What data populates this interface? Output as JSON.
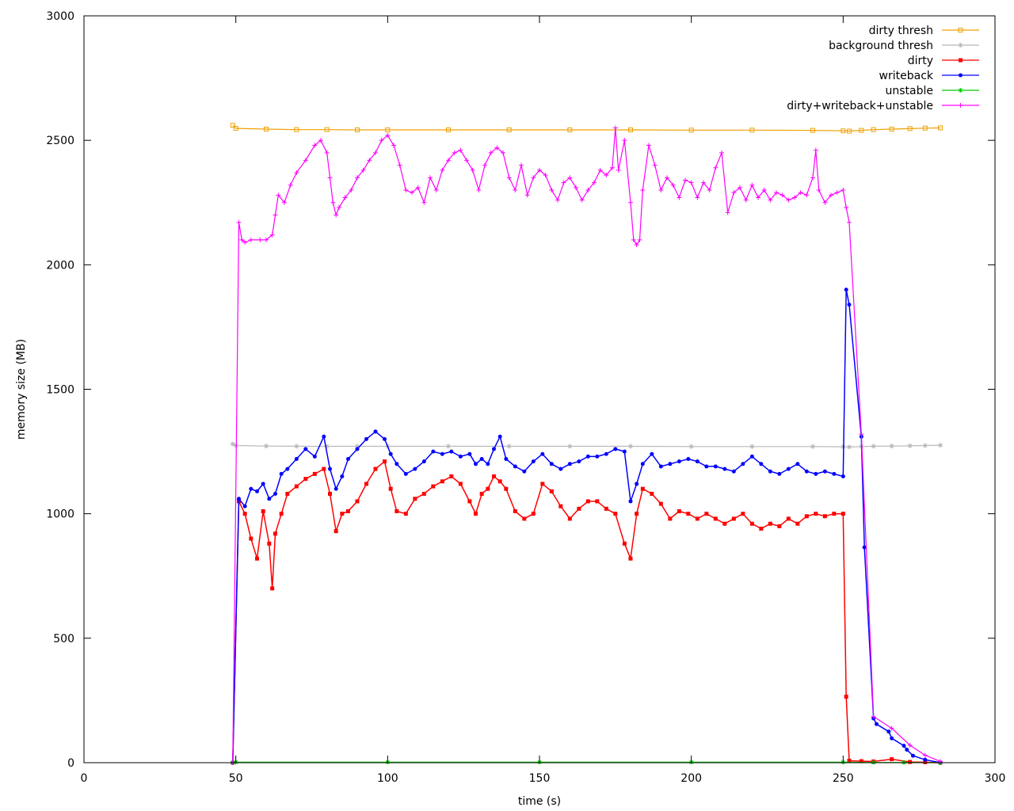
{
  "chart_data": {
    "type": "line",
    "xlabel": "time (s)",
    "ylabel": "memory size (MB)",
    "xlim": [
      0,
      300
    ],
    "ylim": [
      0,
      3000
    ],
    "xticks": [
      0,
      50,
      100,
      150,
      200,
      250,
      300
    ],
    "yticks": [
      0,
      500,
      1000,
      1500,
      2000,
      2500,
      3000
    ],
    "grid": false,
    "legend_position": "top-right",
    "series": [
      {
        "name": "dirty thresh",
        "color": "#f0a000",
        "marker": "square-open",
        "x": [
          49,
          50,
          60,
          70,
          80,
          90,
          100,
          120,
          140,
          160,
          180,
          200,
          220,
          240,
          250,
          252,
          256,
          260,
          266,
          272,
          277,
          282
        ],
        "y": [
          2560,
          2548,
          2545,
          2543,
          2543,
          2542,
          2542,
          2542,
          2542,
          2542,
          2542,
          2541,
          2541,
          2540,
          2538,
          2537,
          2540,
          2543,
          2545,
          2547,
          2549,
          2550
        ]
      },
      {
        "name": "background thresh",
        "color": "#b8b8b8",
        "marker": "star",
        "x": [
          49,
          50,
          60,
          70,
          80,
          90,
          100,
          120,
          140,
          160,
          180,
          200,
          220,
          240,
          250,
          252,
          256,
          260,
          266,
          272,
          277,
          282
        ],
        "y": [
          1280,
          1274,
          1272,
          1271,
          1271,
          1271,
          1271,
          1271,
          1271,
          1271,
          1271,
          1270,
          1270,
          1270,
          1269,
          1268,
          1270,
          1271,
          1272,
          1273,
          1274,
          1275
        ]
      },
      {
        "name": "dirty",
        "color": "#ff0000",
        "marker": "square",
        "x": [
          49,
          51,
          53,
          55,
          57,
          59,
          61,
          62,
          63,
          65,
          67,
          70,
          73,
          76,
          79,
          81,
          83,
          85,
          87,
          90,
          93,
          96,
          99,
          101,
          103,
          106,
          109,
          112,
          115,
          118,
          121,
          124,
          127,
          129,
          131,
          133,
          135,
          137,
          139,
          142,
          145,
          148,
          151,
          154,
          157,
          160,
          163,
          166,
          169,
          172,
          175,
          178,
          180,
          182,
          184,
          187,
          190,
          193,
          196,
          199,
          202,
          205,
          208,
          211,
          214,
          217,
          220,
          223,
          226,
          229,
          232,
          235,
          238,
          241,
          244,
          247,
          250,
          251,
          252,
          256,
          260,
          266,
          272,
          277,
          282
        ],
        "y": [
          0,
          1050,
          1000,
          900,
          820,
          1010,
          880,
          700,
          920,
          1000,
          1080,
          1110,
          1140,
          1160,
          1180,
          1080,
          930,
          1000,
          1010,
          1050,
          1120,
          1180,
          1210,
          1100,
          1010,
          1000,
          1060,
          1080,
          1110,
          1130,
          1150,
          1120,
          1050,
          1000,
          1080,
          1100,
          1150,
          1130,
          1100,
          1010,
          980,
          1000,
          1120,
          1090,
          1030,
          980,
          1020,
          1050,
          1050,
          1020,
          1000,
          880,
          820,
          1000,
          1100,
          1080,
          1040,
          980,
          1010,
          1000,
          980,
          1000,
          980,
          960,
          980,
          1000,
          960,
          940,
          960,
          950,
          980,
          960,
          990,
          1000,
          990,
          1000,
          1000,
          265,
          8,
          6,
          5,
          14,
          3,
          2,
          0
        ]
      },
      {
        "name": "writeback",
        "color": "#0000ff",
        "marker": "circle",
        "x": [
          49,
          51,
          53,
          55,
          57,
          59,
          61,
          63,
          65,
          67,
          70,
          73,
          76,
          79,
          81,
          83,
          85,
          87,
          90,
          93,
          96,
          99,
          101,
          103,
          106,
          109,
          112,
          115,
          118,
          121,
          124,
          127,
          129,
          131,
          133,
          135,
          137,
          139,
          142,
          145,
          148,
          151,
          154,
          157,
          160,
          163,
          166,
          169,
          172,
          175,
          178,
          180,
          182,
          184,
          187,
          190,
          193,
          196,
          199,
          202,
          205,
          208,
          211,
          214,
          217,
          220,
          223,
          226,
          229,
          232,
          235,
          238,
          241,
          244,
          247,
          250,
          251,
          252,
          256,
          257,
          260,
          261,
          265,
          266,
          270,
          271,
          273,
          277,
          282
        ],
        "y": [
          0,
          1060,
          1030,
          1100,
          1090,
          1120,
          1060,
          1080,
          1160,
          1180,
          1220,
          1260,
          1230,
          1310,
          1180,
          1100,
          1150,
          1220,
          1260,
          1300,
          1330,
          1300,
          1240,
          1200,
          1160,
          1180,
          1210,
          1250,
          1240,
          1250,
          1230,
          1240,
          1200,
          1220,
          1200,
          1260,
          1310,
          1220,
          1190,
          1170,
          1210,
          1240,
          1200,
          1180,
          1200,
          1210,
          1230,
          1230,
          1240,
          1260,
          1250,
          1050,
          1120,
          1200,
          1240,
          1190,
          1200,
          1210,
          1220,
          1210,
          1190,
          1190,
          1180,
          1170,
          1200,
          1230,
          1200,
          1170,
          1160,
          1180,
          1200,
          1170,
          1160,
          1170,
          1160,
          1150,
          1900,
          1840,
          1310,
          865,
          178,
          155,
          125,
          98,
          68,
          52,
          28,
          12,
          0
        ]
      },
      {
        "name": "unstable",
        "color": "#00cc00",
        "marker": "star",
        "x": [
          49,
          50,
          100,
          150,
          200,
          250,
          260,
          270,
          282
        ],
        "y": [
          0,
          2,
          2,
          2,
          2,
          2,
          1,
          1,
          0
        ]
      },
      {
        "name": "dirty+writeback+unstable",
        "color": "#ff00ff",
        "marker": "plus",
        "x": [
          49,
          51,
          52,
          53,
          55,
          58,
          60,
          62,
          63,
          64,
          66,
          68,
          70,
          73,
          76,
          78,
          80,
          81,
          82,
          83,
          84,
          86,
          88,
          90,
          92,
          94,
          96,
          98,
          100,
          102,
          104,
          106,
          108,
          110,
          112,
          114,
          116,
          118,
          120,
          122,
          124,
          126,
          128,
          130,
          132,
          134,
          136,
          138,
          140,
          142,
          144,
          146,
          148,
          150,
          152,
          154,
          156,
          158,
          160,
          162,
          164,
          166,
          168,
          170,
          172,
          174,
          175,
          176,
          178,
          180,
          181,
          182,
          183,
          184,
          186,
          188,
          190,
          192,
          194,
          196,
          198,
          200,
          202,
          204,
          206,
          208,
          210,
          212,
          214,
          216,
          218,
          220,
          222,
          224,
          226,
          228,
          230,
          232,
          234,
          236,
          238,
          240,
          241,
          242,
          244,
          246,
          248,
          250,
          251,
          252,
          256,
          260,
          266,
          272,
          277,
          282
        ],
        "y": [
          0,
          2170,
          2100,
          2090,
          2100,
          2100,
          2100,
          2120,
          2200,
          2280,
          2250,
          2320,
          2370,
          2420,
          2480,
          2500,
          2450,
          2350,
          2250,
          2200,
          2230,
          2270,
          2300,
          2350,
          2380,
          2420,
          2450,
          2500,
          2520,
          2480,
          2400,
          2300,
          2290,
          2310,
          2250,
          2350,
          2300,
          2380,
          2420,
          2450,
          2460,
          2420,
          2380,
          2300,
          2400,
          2450,
          2470,
          2450,
          2350,
          2300,
          2400,
          2280,
          2350,
          2380,
          2360,
          2300,
          2260,
          2330,
          2350,
          2310,
          2260,
          2300,
          2330,
          2380,
          2360,
          2390,
          2550,
          2380,
          2500,
          2250,
          2100,
          2080,
          2100,
          2300,
          2480,
          2400,
          2300,
          2350,
          2320,
          2270,
          2340,
          2330,
          2270,
          2330,
          2300,
          2390,
          2450,
          2210,
          2290,
          2310,
          2260,
          2320,
          2270,
          2300,
          2260,
          2290,
          2280,
          2260,
          2270,
          2290,
          2280,
          2350,
          2460,
          2300,
          2250,
          2280,
          2290,
          2300,
          2230,
          2170,
          1320,
          185,
          138,
          70,
          30,
          5
        ]
      }
    ]
  }
}
